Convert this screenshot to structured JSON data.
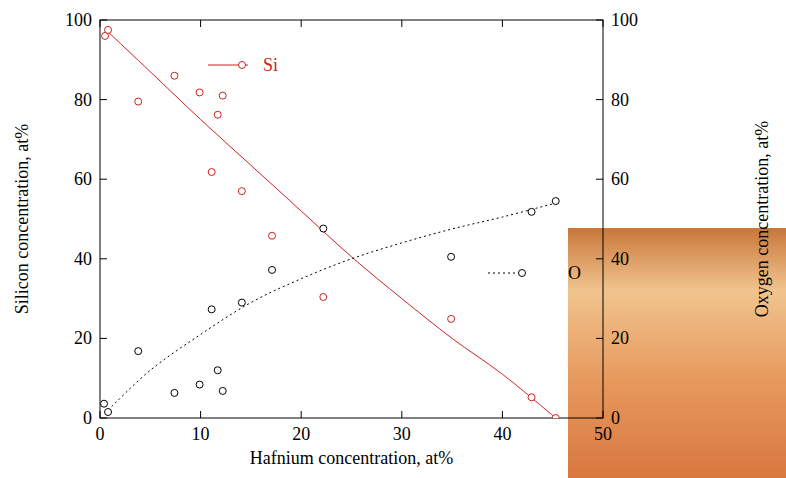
{
  "chart_data": {
    "type": "scatter",
    "x_label": "Hafnium concentration, at%",
    "y_label": "Silicon concentration, at%",
    "y2_label": "Oxygen concentration, at%",
    "xlim": [
      0,
      50
    ],
    "xticks": [
      0,
      10,
      20,
      30,
      40,
      50
    ],
    "ylim": [
      0,
      100
    ],
    "yticks": [
      0,
      20,
      40,
      60,
      80,
      100
    ],
    "y2lim": [
      0,
      100
    ],
    "y2ticks": [
      0,
      20,
      40,
      60,
      80,
      100
    ],
    "grid": false,
    "legend": "inline",
    "series": [
      {
        "name": "Si",
        "color": "#cc2222",
        "axis": "y",
        "marker": "open-circle",
        "line_style": "solid",
        "x": [
          0.5,
          0.8,
          3.8,
          7.4,
          9.9,
          11.1,
          11.7,
          12.2,
          14.1,
          17.1,
          22.2,
          34.9,
          42.9,
          45.3
        ],
        "values": [
          96,
          97.5,
          79.5,
          86,
          81.8,
          61.8,
          76.2,
          81,
          57,
          45.8,
          30.4,
          24.9,
          5.2,
          0
        ],
        "fit_x": [
          0.8,
          5,
          10,
          15,
          20,
          25,
          30,
          35,
          40,
          45.3
        ],
        "fit_values": [
          97,
          87,
          75,
          63.5,
          52,
          40.5,
          30,
          20,
          11,
          0
        ]
      },
      {
        "name": "O",
        "color": "#000000",
        "axis": "y2",
        "marker": "open-circle",
        "line_style": "dotted",
        "x": [
          0.4,
          0.8,
          3.8,
          7.4,
          9.9,
          11.1,
          11.7,
          12.2,
          14.1,
          17.1,
          22.2,
          34.9,
          42.9,
          45.3
        ],
        "values": [
          3.6,
          1.5,
          16.8,
          6.3,
          8.4,
          27.3,
          12,
          6.8,
          29,
          37.2,
          47.6,
          40.5,
          51.8,
          54.5
        ],
        "fit_x": [
          0.8,
          5,
          10,
          15,
          20,
          25,
          30,
          35,
          40,
          45.3
        ],
        "fit_values": [
          2,
          12,
          21,
          29,
          35,
          40,
          44,
          47.5,
          50.5,
          54
        ]
      }
    ]
  }
}
